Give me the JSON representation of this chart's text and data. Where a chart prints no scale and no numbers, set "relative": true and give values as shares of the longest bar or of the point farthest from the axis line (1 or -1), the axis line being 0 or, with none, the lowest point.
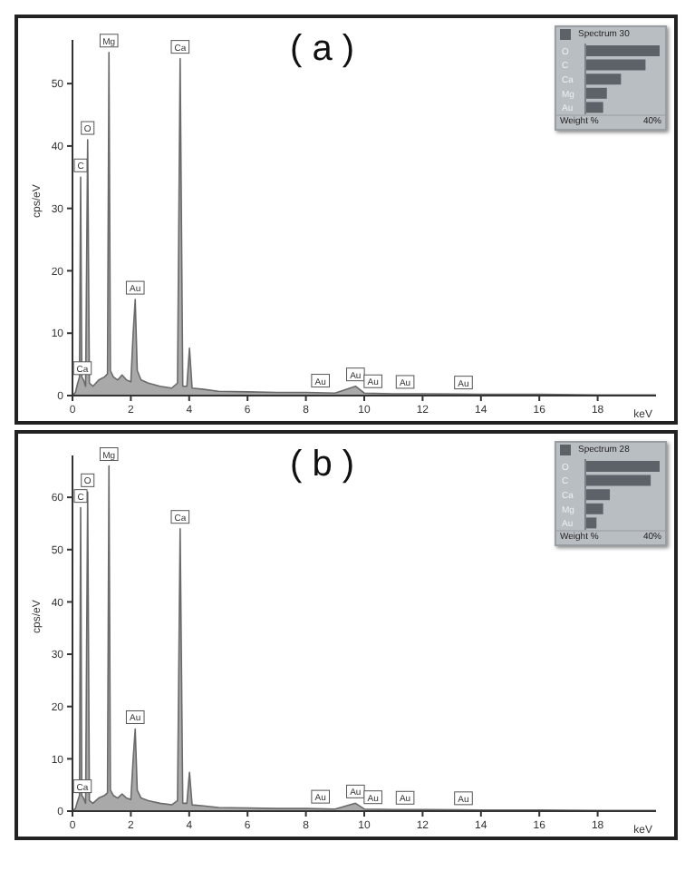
{
  "chart_data": [
    {
      "type": "area",
      "title": "( a )",
      "xlabel": "keV",
      "ylabel": "cps/eV",
      "xlim": [
        0,
        20
      ],
      "xticks": [
        0,
        2,
        4,
        6,
        8,
        10,
        12,
        14,
        16,
        18
      ],
      "ylim": [
        0,
        57
      ],
      "yticks": [
        0,
        10,
        20,
        30,
        40,
        50
      ],
      "series": [
        {
          "color": "#a9a9a9",
          "x": [
            0,
            0.1,
            0.18,
            0.24,
            0.28,
            0.32,
            0.38,
            0.45,
            0.52,
            0.58,
            0.7,
            0.9,
            1.1,
            1.2,
            1.25,
            1.3,
            1.4,
            1.55,
            1.7,
            1.85,
            2.0,
            2.08,
            2.15,
            2.22,
            2.35,
            2.6,
            3.0,
            3.4,
            3.6,
            3.69,
            3.78,
            3.92,
            4.01,
            4.1,
            4.5,
            5,
            6,
            7,
            8,
            9,
            9.7,
            10,
            11,
            12,
            14,
            16,
            18,
            20
          ],
          "values": [
            0,
            0.5,
            2,
            3,
            35,
            3,
            2.5,
            1.5,
            41,
            2,
            1.5,
            2.5,
            3,
            3.5,
            55,
            4,
            3,
            2.5,
            3.3,
            2.5,
            2.2,
            10,
            15.4,
            4,
            2.5,
            2,
            1.5,
            1.2,
            2,
            54,
            1.5,
            1.5,
            7.6,
            1.2,
            1,
            0.7,
            0.6,
            0.5,
            0.5,
            0.4,
            1.5,
            0.4,
            0.3,
            0.3,
            0.2,
            0.2,
            0.1,
            0.1
          ]
        }
      ],
      "annotations": [
        {
          "text": "C",
          "x": 0.28,
          "y": 35
        },
        {
          "text": "O",
          "x": 0.52,
          "y": 41
        },
        {
          "text": "Mg",
          "x": 1.25,
          "y": 55
        },
        {
          "text": "Ca",
          "x": 3.69,
          "y": 54
        },
        {
          "text": "Au",
          "x": 2.15,
          "y": 15.4
        },
        {
          "text": "Ca",
          "x": 0.34,
          "y": 2.5
        },
        {
          "text": "Au",
          "x": 8.5,
          "y": 0.5
        },
        {
          "text": "Au",
          "x": 9.7,
          "y": 1.5
        },
        {
          "text": "Au",
          "x": 10.3,
          "y": 0.4
        },
        {
          "text": "Au",
          "x": 11.4,
          "y": 0.3
        },
        {
          "text": "Au",
          "x": 13.4,
          "y": 0.2
        }
      ]
    },
    {
      "type": "bar",
      "orientation": "horizontal",
      "relative": true,
      "categories": [
        "O",
        "C",
        "Ca",
        "Mg",
        "Au"
      ],
      "xlabel": "Weight %",
      "legend": "top left",
      "annotations": [
        "40%"
      ],
      "series": [
        {
          "name": "Spectrum 30",
          "color": "#5d6268",
          "values": [
            1,
            0.81,
            0.48,
            0.29,
            0.24
          ]
        }
      ]
    },
    {
      "type": "area",
      "title": "( b )",
      "xlabel": "keV",
      "ylabel": "cps/eV",
      "xlim": [
        0,
        20
      ],
      "xticks": [
        0,
        2,
        4,
        6,
        8,
        10,
        12,
        14,
        16,
        18
      ],
      "ylim": [
        0,
        68
      ],
      "yticks": [
        0,
        10,
        20,
        30,
        40,
        50,
        60
      ],
      "series": [
        {
          "color": "#a9a9a9",
          "x": [
            0,
            0.1,
            0.18,
            0.24,
            0.28,
            0.32,
            0.38,
            0.45,
            0.52,
            0.58,
            0.7,
            0.9,
            1.1,
            1.2,
            1.25,
            1.3,
            1.4,
            1.55,
            1.7,
            1.85,
            2.0,
            2.08,
            2.15,
            2.22,
            2.35,
            2.6,
            3.0,
            3.4,
            3.6,
            3.69,
            3.78,
            3.92,
            4.01,
            4.1,
            4.5,
            5,
            6,
            7,
            8,
            9,
            9.7,
            10,
            11,
            12,
            14,
            16,
            18,
            20
          ],
          "values": [
            0,
            0.5,
            2,
            3,
            58,
            3,
            2.5,
            1.5,
            61,
            2,
            1.5,
            2.5,
            3,
            3.5,
            66,
            4,
            3,
            2.5,
            3.3,
            2.5,
            2.2,
            10,
            15.7,
            4,
            2.5,
            2,
            1.5,
            1.2,
            2,
            54,
            1.5,
            1.5,
            7.4,
            1.2,
            1,
            0.7,
            0.6,
            0.5,
            0.5,
            0.4,
            1.5,
            0.4,
            0.3,
            0.3,
            0.2,
            0.2,
            0.1,
            0.1
          ]
        }
      ],
      "annotations": [
        {
          "text": "C",
          "x": 0.28,
          "y": 58
        },
        {
          "text": "O",
          "x": 0.52,
          "y": 61
        },
        {
          "text": "Mg",
          "x": 1.25,
          "y": 66
        },
        {
          "text": "Ca",
          "x": 3.69,
          "y": 54
        },
        {
          "text": "Au",
          "x": 2.15,
          "y": 15.7
        },
        {
          "text": "Ca",
          "x": 0.34,
          "y": 2.5
        },
        {
          "text": "Au",
          "x": 8.5,
          "y": 0.5
        },
        {
          "text": "Au",
          "x": 9.7,
          "y": 1.5
        },
        {
          "text": "Au",
          "x": 10.3,
          "y": 0.4
        },
        {
          "text": "Au",
          "x": 11.4,
          "y": 0.3
        },
        {
          "text": "Au",
          "x": 13.4,
          "y": 0.2
        }
      ]
    },
    {
      "type": "bar",
      "orientation": "horizontal",
      "relative": true,
      "categories": [
        "O",
        "C",
        "Ca",
        "Mg",
        "Au"
      ],
      "xlabel": "Weight %",
      "legend": "top left",
      "annotations": [
        "40%"
      ],
      "series": [
        {
          "name": "Spectrum 28",
          "color": "#5d6268",
          "values": [
            1,
            0.88,
            0.33,
            0.24,
            0.15
          ]
        }
      ]
    }
  ]
}
